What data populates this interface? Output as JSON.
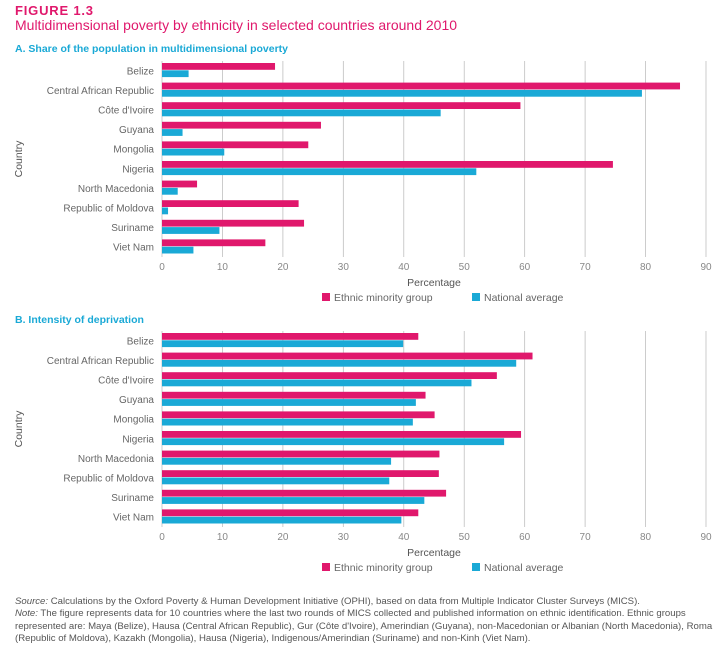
{
  "figure": {
    "label": "FIGURE 1.3",
    "title": "Multidimensional poverty by ethnicity in selected countries around 2010"
  },
  "colors": {
    "minority": "#e0186c",
    "national": "#1aa9d6",
    "grid": "#bfbfbf",
    "text": "#555555"
  },
  "chart_data": [
    {
      "type": "bar",
      "orientation": "horizontal",
      "title": "A. Share of the population in multidimensional poverty",
      "xlabel": "Percentage",
      "ylabel": "Country",
      "xlim": [
        0,
        90
      ],
      "xticks": [
        0,
        10,
        20,
        30,
        40,
        50,
        60,
        70,
        80,
        90
      ],
      "grid": true,
      "legend_position": "bottom",
      "categories": [
        "Belize",
        "Central African Republic",
        "Côte d'Ivoire",
        "Guyana",
        "Mongolia",
        "Nigeria",
        "North Macedonia",
        "Republic of Moldova",
        "Suriname",
        "Viet Nam"
      ],
      "series": [
        {
          "name": "Ethnic minority group",
          "color": "#e0186c",
          "values": [
            18.7,
            85.7,
            59.3,
            26.3,
            24.2,
            74.6,
            5.8,
            22.6,
            23.5,
            17.1
          ]
        },
        {
          "name": "National average",
          "color": "#1aa9d6",
          "values": [
            4.4,
            79.4,
            46.1,
            3.4,
            10.3,
            52.0,
            2.6,
            1.0,
            9.5,
            5.2
          ]
        }
      ]
    },
    {
      "type": "bar",
      "orientation": "horizontal",
      "title": "B. Intensity of deprivation",
      "xlabel": "Percentage",
      "ylabel": "Country",
      "xlim": [
        0,
        90
      ],
      "xticks": [
        0,
        10,
        20,
        30,
        40,
        50,
        60,
        70,
        80,
        90
      ],
      "grid": true,
      "legend_position": "bottom",
      "categories": [
        "Belize",
        "Central African Republic",
        "Côte d'Ivoire",
        "Guyana",
        "Mongolia",
        "Nigeria",
        "North Macedonia",
        "Republic of Moldova",
        "Suriname",
        "Viet Nam"
      ],
      "series": [
        {
          "name": "Ethnic minority group",
          "color": "#e0186c",
          "values": [
            42.4,
            61.3,
            55.4,
            43.6,
            45.1,
            59.4,
            45.9,
            45.8,
            47.0,
            42.4
          ]
        },
        {
          "name": "National average",
          "color": "#1aa9d6",
          "values": [
            39.9,
            58.6,
            51.2,
            42.0,
            41.5,
            56.6,
            37.9,
            37.6,
            43.4,
            39.6
          ]
        }
      ]
    }
  ],
  "note": {
    "source_label": "Source:",
    "source_text": " Calculations by the Oxford Poverty & Human Development Initiative (OPHI), based on data from Multiple Indicator Cluster Surveys (MICS).",
    "note_label": "Note:",
    "note_text": " The figure represents data for 10 countries where the last two rounds of MICS collected and published information on ethnic identification. Ethnic groups represented are: Maya (Belize), Hausa (Central African Republic), Gur (Côte d'Ivoire), Amerindian (Guyana), non-Macedonian or Albanian (North Macedonia), Roma (Republic of Moldova), Kazakh (Mongolia), Hausa (Nigeria), Indigenous/Amerindian (Suriname) and non-Kinh (Viet Nam)."
  }
}
